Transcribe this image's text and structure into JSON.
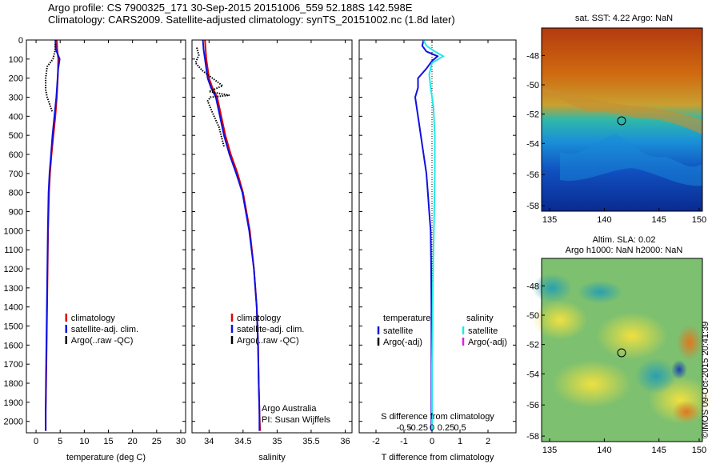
{
  "header": {
    "line1": "Argo profile: CS 7900325_171 30-Sep-2015 20151006_559 52.188S 142.598E",
    "line2": "Climatology: CARS2009. Satellite-adjusted climatology: synTS_20151002.nc (1.8d later)"
  },
  "credit": "©IMOS 09-Oct-2015 20:41:39",
  "colors": {
    "climatology": "#e00000",
    "satellite": "#1010e0",
    "argo": "#000000",
    "salinity_satellite": "#22e8e8",
    "salinity_argo": "#e020e0"
  },
  "chart_data": [
    {
      "id": "temperature",
      "type": "line",
      "xlabel": "temperature (deg C)",
      "ylabel": "",
      "xlim": [
        -2,
        31
      ],
      "ylim": [
        2060,
        0
      ],
      "xticks": [
        0,
        5,
        10,
        15,
        20,
        25,
        30
      ],
      "xtick_labels": [
        "0",
        "5",
        "10",
        "15",
        "20",
        "25",
        "30"
      ],
      "yticks": [
        0,
        100,
        200,
        300,
        400,
        500,
        600,
        700,
        800,
        900,
        1000,
        1100,
        1200,
        1300,
        1400,
        1500,
        1600,
        1700,
        1800,
        1900,
        2000
      ],
      "ytick_labels": [
        "0",
        "100",
        "200",
        "300",
        "400",
        "500",
        "600",
        "700",
        "800",
        "900",
        "1000",
        "1100",
        "1200",
        "1300",
        "1400",
        "1500",
        "1600",
        "1700",
        "1800",
        "1900",
        "2000"
      ],
      "legend": {
        "position": "lower-middle",
        "entries": [
          "climatology",
          "satellite-adj. clim.",
          "Argo(..raw -QC)"
        ]
      },
      "series": [
        {
          "name": "climatology",
          "color": "#e00000",
          "style": "solid",
          "x": [
            4.3,
            4.4,
            4.6,
            4.5,
            4.3,
            4.0,
            3.6,
            3.2,
            2.9,
            2.7,
            2.5,
            2.4,
            2.3,
            2.2,
            2.1,
            2.0,
            2.0
          ],
          "y": [
            0,
            50,
            100,
            200,
            300,
            400,
            500,
            600,
            700,
            800,
            1000,
            1200,
            1400,
            1600,
            1800,
            1950,
            2050
          ]
        },
        {
          "name": "satellite-adj. clim.",
          "color": "#1010e0",
          "style": "solid",
          "x": [
            4.0,
            4.1,
            4.9,
            4.6,
            4.2,
            3.8,
            3.4,
            3.1,
            2.8,
            2.6,
            2.45,
            2.35,
            2.25,
            2.15,
            2.05,
            2.0,
            2.0
          ],
          "y": [
            0,
            50,
            100,
            150,
            300,
            400,
            500,
            600,
            700,
            800,
            1000,
            1200,
            1400,
            1600,
            1800,
            1950,
            2050
          ]
        },
        {
          "name": "Argo(..raw -QC)",
          "color": "#000000",
          "style": "dotted",
          "x": [
            4.0,
            3.9,
            3.5,
            2.3,
            2.0,
            2.0,
            2.3,
            2.6,
            3.4
          ],
          "y": [
            20,
            60,
            100,
            140,
            200,
            260,
            300,
            320,
            380
          ]
        }
      ]
    },
    {
      "id": "salinity",
      "type": "line",
      "xlabel": "salinity",
      "ylabel": "",
      "xlim": [
        33.75,
        36.1
      ],
      "ylim": [
        2060,
        0
      ],
      "xticks": [
        34,
        34.5,
        35,
        35.5,
        36
      ],
      "xtick_labels": [
        "34",
        "34.5",
        "35",
        "35.5",
        "36"
      ],
      "legend": {
        "position": "lower-middle",
        "entries": [
          "climatology",
          "satellite-adj. clim.",
          "Argo(..raw -QC)"
        ]
      },
      "annotation": [
        "Argo Australia",
        "PI: Susan Wijffels"
      ],
      "series": [
        {
          "name": "climatology",
          "color": "#e00000",
          "style": "solid",
          "x": [
            33.94,
            33.95,
            33.96,
            34.0,
            34.05,
            34.12,
            34.18,
            34.24,
            34.32,
            34.42,
            34.5,
            34.6,
            34.66,
            34.7,
            34.72,
            34.73,
            34.74,
            34.75
          ],
          "y": [
            0,
            50,
            100,
            200,
            250,
            300,
            400,
            500,
            600,
            700,
            800,
            1000,
            1200,
            1400,
            1600,
            1800,
            1950,
            2050
          ]
        },
        {
          "name": "satellite-adj. clim.",
          "color": "#1010e0",
          "style": "solid",
          "x": [
            33.91,
            33.92,
            33.94,
            33.98,
            34.03,
            34.1,
            34.16,
            34.22,
            34.3,
            34.4,
            34.49,
            34.59,
            34.66,
            34.7,
            34.72,
            34.73,
            34.74,
            34.74
          ],
          "y": [
            0,
            50,
            100,
            200,
            250,
            300,
            400,
            500,
            600,
            700,
            800,
            1000,
            1200,
            1400,
            1600,
            1800,
            1950,
            2050
          ]
        },
        {
          "name": "Argo(..raw -QC)",
          "color": "#000000",
          "style": "dotted",
          "x": [
            33.82,
            33.85,
            33.8,
            33.9,
            34.05,
            34.2,
            34.0,
            34.3,
            34.02,
            33.98,
            34.05,
            34.15,
            34.22
          ],
          "y": [
            40,
            80,
            120,
            160,
            200,
            240,
            270,
            290,
            300,
            320,
            380,
            460,
            560
          ]
        }
      ]
    },
    {
      "id": "difference",
      "type": "line",
      "xlabel": "T difference from climatology",
      "x2label": "S difference from climatology",
      "ylabel": "",
      "xlim": [
        -2.6,
        3.0
      ],
      "ylim": [
        2060,
        0
      ],
      "xticks": [
        -2,
        -1,
        0,
        1,
        2
      ],
      "xtick_labels": [
        "-2",
        "-1",
        "0",
        "1",
        "2"
      ],
      "x2ticks": [
        "-0.5",
        "-0.25",
        "0",
        "0.25",
        "0.5"
      ],
      "legend": {
        "position": "lower-middle",
        "temperature_title": "temperature",
        "salinity_title": "salinity",
        "entries": [
          "satellite",
          "Argo(-adj)",
          "satellite",
          "Argo(-adj)"
        ]
      },
      "series": [
        {
          "name": "temperature satellite",
          "color": "#1010e0",
          "style": "solid",
          "x": [
            -0.3,
            -0.35,
            -0.2,
            0.2,
            0.0,
            -0.2,
            -0.5,
            -0.5,
            -0.6,
            -0.5,
            -0.4,
            -0.3,
            -0.2,
            -0.15,
            -0.1,
            -0.05,
            -0.03,
            -0.02,
            -0.02,
            -0.02,
            -0.02
          ],
          "y": [
            0,
            30,
            60,
            85,
            110,
            150,
            200,
            250,
            300,
            400,
            500,
            600,
            700,
            800,
            900,
            1000,
            1200,
            1400,
            1600,
            1800,
            2050
          ]
        },
        {
          "name": "salinity satellite",
          "color": "#22e8e8",
          "style": "solid",
          "x": [
            -0.3,
            -0.2,
            0.1,
            0.4,
            0.0,
            -0.1,
            -0.05,
            0.05,
            0.1,
            0.1,
            0.08,
            0.05,
            0.03,
            0.02,
            0.0,
            0.0,
            0.0
          ],
          "y": [
            0,
            30,
            60,
            85,
            120,
            180,
            250,
            350,
            500,
            700,
            900,
            1100,
            1300,
            1500,
            1700,
            1900,
            2050
          ]
        }
      ]
    }
  ],
  "maps": [
    {
      "id": "sst-map",
      "title": "sat. SST: 4.22 Argo: NaN",
      "xticks": [
        "135",
        "140",
        "145",
        "150"
      ],
      "yticks": [
        "-48",
        "-50",
        "-52",
        "-54",
        "-56",
        "-58"
      ]
    },
    {
      "id": "sla-map",
      "title_line1": "Altim. SLA: 0.02",
      "title_line2": "Argo h1000: NaN h2000: NaN",
      "xticks": [
        "135",
        "140",
        "145",
        "150"
      ],
      "yticks": [
        "-48",
        "-50",
        "-52",
        "-54",
        "-56",
        "-58"
      ]
    }
  ]
}
